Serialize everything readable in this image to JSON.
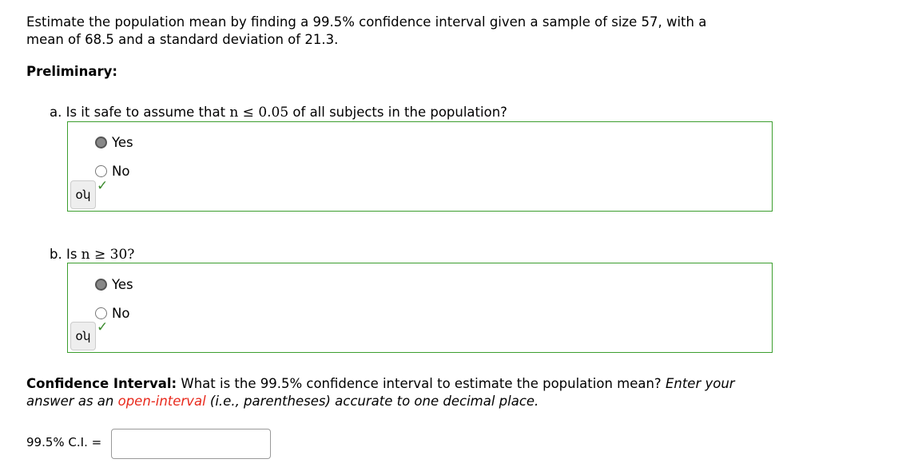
{
  "prompt": "Estimate the population mean by finding a 99.5% confidence interval given a sample of size 57, with a mean of 68.5 and a standard deviation of 21.3.",
  "preliminary": "Preliminary:",
  "questions": [
    {
      "prefix": "a. Is it safe to assume that ",
      "math": "n ≤ 0.05",
      "suffix": " of all subjects in the population?",
      "options": [
        "Yes",
        "No"
      ],
      "selected": "Yes",
      "status": "correct"
    },
    {
      "prefix": "b. Is ",
      "math": "n ≥ 30?",
      "suffix": "",
      "options": [
        "Yes",
        "No"
      ],
      "selected": "Yes",
      "status": "correct"
    }
  ],
  "ci": {
    "label": "Confidence Interval:",
    "text": " What is the 99.5% confidence interval to estimate the population mean? ",
    "italic1": "Enter your answer as an ",
    "highlight": "open-interval",
    "italic2": " (i.e., parentheses) accurate to one decimal place.",
    "input_label": "99.5% C.I. =",
    "value": ""
  },
  "icons": {
    "key": "key-icon",
    "check": "checkmark-icon"
  },
  "colors": {
    "correct_border": "#3c9e2e",
    "highlight": "#e8291c"
  }
}
